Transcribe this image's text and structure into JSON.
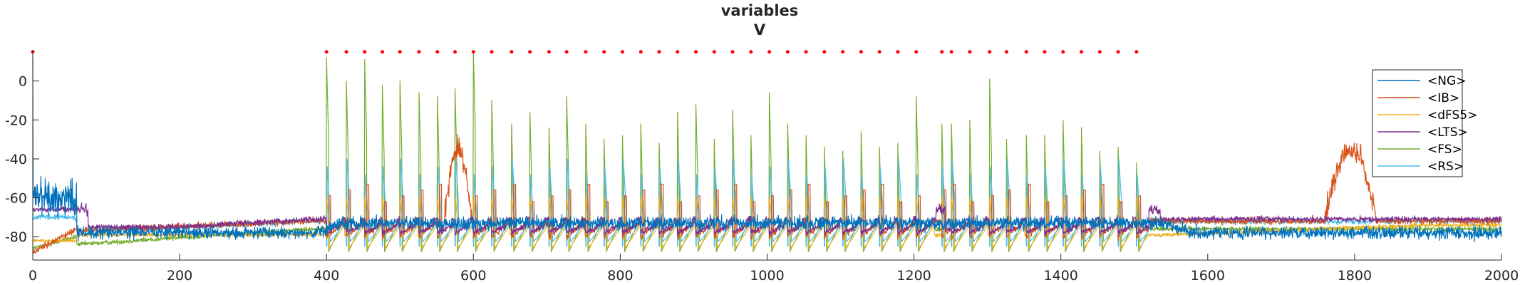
{
  "chart_data": {
    "type": "line",
    "title": [
      "variables",
      "V"
    ],
    "xlabel": "",
    "ylabel": "",
    "xlim": [
      0,
      2000
    ],
    "ylim": [
      -92,
      16
    ],
    "x_ticks": [
      0,
      200,
      400,
      600,
      800,
      1000,
      1200,
      1400,
      1600,
      1800,
      2000
    ],
    "y_ticks": [
      -80,
      -60,
      -40,
      -20,
      0
    ],
    "grid": false,
    "legend_location": "top-right",
    "series": [
      {
        "name": "<NG>",
        "color": "#0072BD"
      },
      {
        "name": "<IB>",
        "color": "#D95319"
      },
      {
        "name": "<dFS5>",
        "color": "#EDB120"
      },
      {
        "name": "<LTS>",
        "color": "#7E2F8E"
      },
      {
        "name": "<FS>",
        "color": "#77AC30"
      },
      {
        "name": "<RS>",
        "color": "#4DBEEE"
      }
    ],
    "spikes": {
      "series": "<FS>",
      "times": [
        0,
        400,
        427,
        452,
        476,
        500,
        526,
        551,
        575,
        600,
        625,
        652,
        677,
        703,
        727,
        753,
        778,
        803,
        828,
        853,
        878,
        903,
        928,
        953,
        978,
        1003,
        1028,
        1053,
        1078,
        1103,
        1128,
        1153,
        1178,
        1203,
        1238,
        1251,
        1276,
        1303,
        1326,
        1353,
        1378,
        1403,
        1428,
        1453,
        1478,
        1503
      ],
      "peaks": [
        14,
        12,
        0,
        11,
        -2,
        0,
        -6,
        -8,
        -4,
        15,
        -10,
        -22,
        -16,
        -24,
        -8,
        -22,
        -30,
        -28,
        -22,
        -32,
        -16,
        -12,
        -30,
        -15,
        -28,
        -6,
        -22,
        -28,
        -34,
        -36,
        -26,
        -34,
        -32,
        -8,
        -22,
        -22,
        -20,
        1,
        -30,
        -28,
        -28,
        -20,
        -24,
        -36,
        -34,
        -42
      ]
    },
    "markers": {
      "color": "#FF0000",
      "y": 15,
      "times": [
        0,
        400,
        427,
        452,
        476,
        500,
        526,
        551,
        575,
        600,
        625,
        652,
        677,
        703,
        727,
        753,
        778,
        803,
        828,
        853,
        878,
        903,
        928,
        953,
        978,
        1003,
        1028,
        1053,
        1078,
        1103,
        1128,
        1153,
        1178,
        1203,
        1238,
        1251,
        1276,
        1303,
        1326,
        1353,
        1378,
        1403,
        1428,
        1453,
        1478,
        1503
      ]
    }
  }
}
